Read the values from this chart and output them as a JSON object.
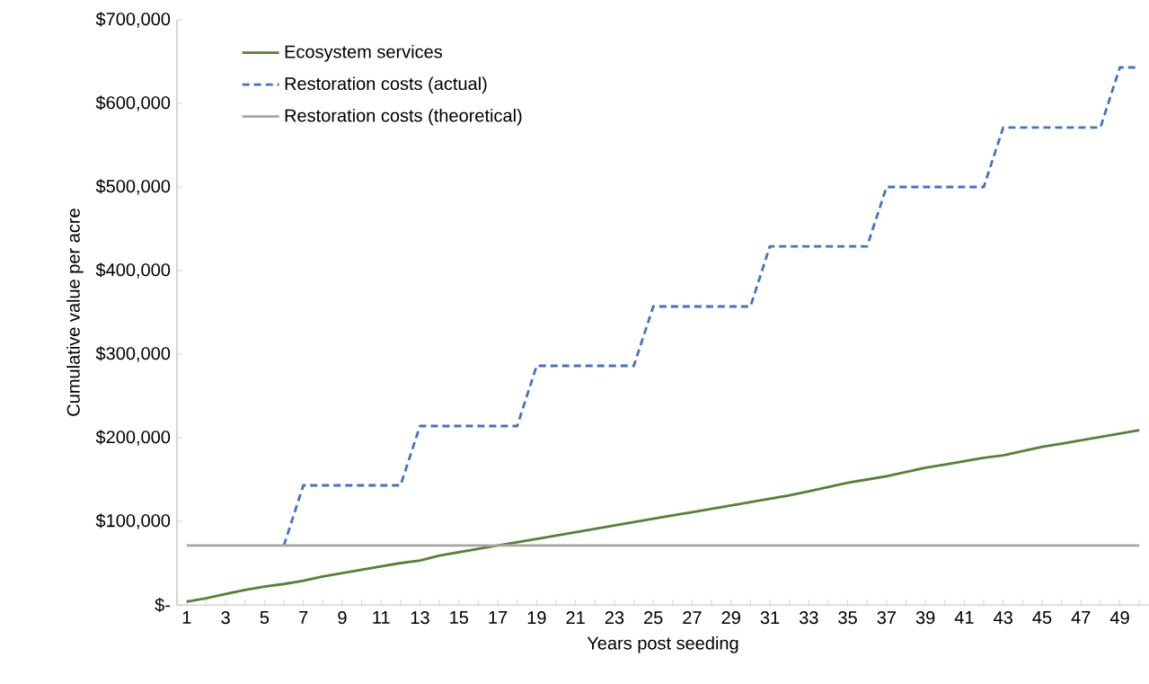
{
  "chart_data": {
    "type": "line",
    "xlabel": "Years post seeding",
    "ylabel": "Cumulative value per acre",
    "categories": [
      "1",
      null,
      "3",
      null,
      "5",
      null,
      "7",
      null,
      "9",
      null,
      "11",
      null,
      "13",
      null,
      "15",
      null,
      "17",
      null,
      "19",
      null,
      "21",
      null,
      "23",
      null,
      "25",
      null,
      "27",
      null,
      "29",
      null,
      "31",
      null,
      "33",
      null,
      "35",
      null,
      "37",
      null,
      "39",
      null,
      "41",
      null,
      "43",
      null,
      "45",
      null,
      "47",
      null,
      "49",
      null
    ],
    "series": [
      {
        "name": "Ecosystem services",
        "color": "#548235",
        "line_style": "solid",
        "values": [
          4000,
          8000,
          13000,
          18000,
          22000,
          25000,
          29000,
          34000,
          38000,
          42000,
          46000,
          50000,
          53000,
          59000,
          63000,
          67000,
          71000,
          75000,
          79000,
          83000,
          87000,
          91000,
          95000,
          99000,
          103000,
          107000,
          111000,
          115000,
          119000,
          123000,
          127000,
          131000,
          136000,
          141000,
          146000,
          150000,
          154000,
          159000,
          164000,
          168000,
          172000,
          176000,
          179000,
          184000,
          189000,
          193000,
          197000,
          201000,
          205000,
          209000
        ]
      },
      {
        "name": "Restoration costs (actual)",
        "color": "#4472c4",
        "line_style": "dashed",
        "values": [
          null,
          null,
          null,
          null,
          null,
          71000,
          143000,
          143000,
          143000,
          143000,
          143000,
          143000,
          214000,
          214000,
          214000,
          214000,
          214000,
          214000,
          286000,
          286000,
          286000,
          286000,
          286000,
          286000,
          357000,
          357000,
          357000,
          357000,
          357000,
          357000,
          429000,
          429000,
          429000,
          429000,
          429000,
          429000,
          500000,
          500000,
          500000,
          500000,
          500000,
          500000,
          571000,
          571000,
          571000,
          571000,
          571000,
          571000,
          643000,
          643000
        ]
      },
      {
        "name": "Restoration costs (theoretical)",
        "color": "#a5a5a5",
        "line_style": "solid",
        "values": [
          71000,
          71000,
          71000,
          71000,
          71000,
          71000,
          71000,
          71000,
          71000,
          71000,
          71000,
          71000,
          71000,
          71000,
          71000,
          71000,
          71000,
          71000,
          71000,
          71000,
          71000,
          71000,
          71000,
          71000,
          71000,
          71000,
          71000,
          71000,
          71000,
          71000,
          71000,
          71000,
          71000,
          71000,
          71000,
          71000,
          71000,
          71000,
          71000,
          71000,
          71000,
          71000,
          71000,
          71000,
          71000,
          71000,
          71000,
          71000,
          71000,
          71000
        ]
      }
    ],
    "ylim": [
      0,
      700000
    ],
    "yticks": [
      {
        "value": 0,
        "label": "$-"
      },
      {
        "value": 100000,
        "label": "$100,000"
      },
      {
        "value": 200000,
        "label": "$200,000"
      },
      {
        "value": 300000,
        "label": "$300,000"
      },
      {
        "value": 400000,
        "label": "$400,000"
      },
      {
        "value": 500000,
        "label": "$500,000"
      },
      {
        "value": 600000,
        "label": "$600,000"
      },
      {
        "value": 700000,
        "label": "$700,000"
      }
    ],
    "grid": false,
    "legend": "top left",
    "marker": "none"
  }
}
